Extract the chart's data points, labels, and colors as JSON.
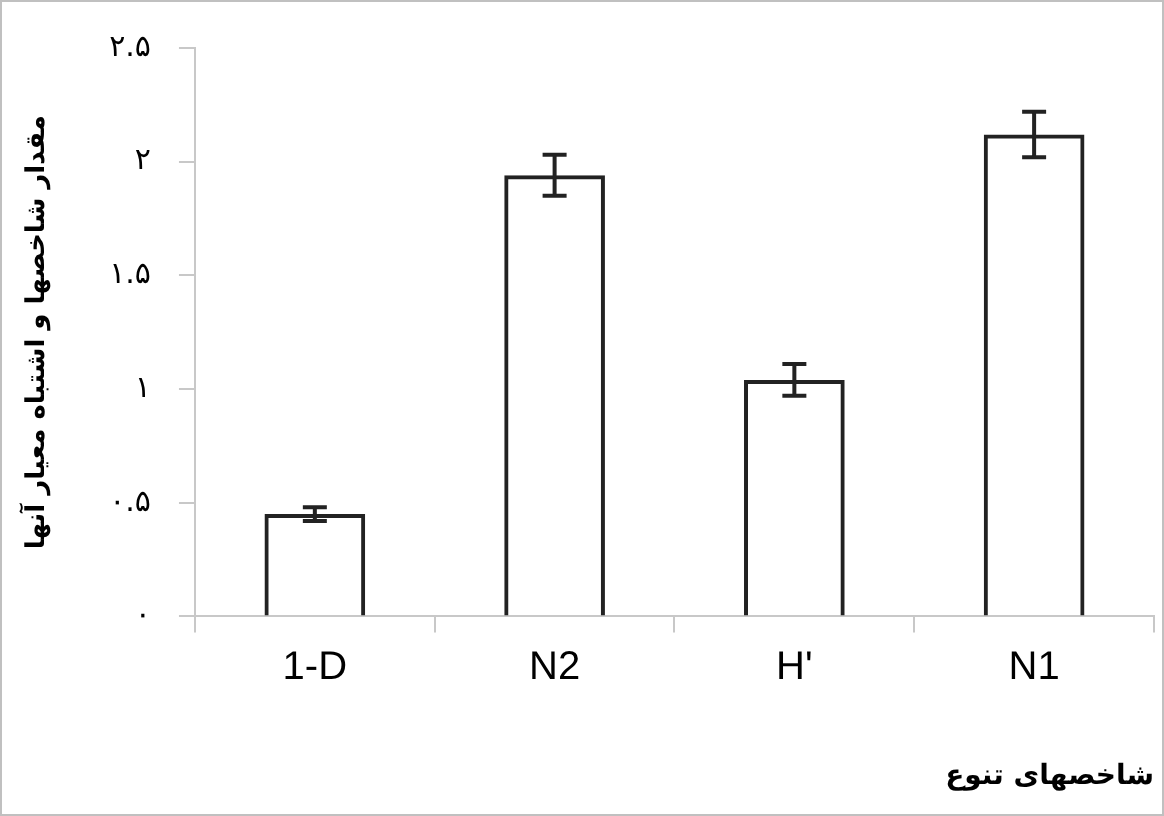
{
  "chart_data": {
    "type": "bar",
    "xlabel": "شاخصهای تنوع",
    "ylabel": "مقدار شاخصها و اشتباه معیار آنها",
    "categories": [
      "1-D",
      "N2",
      "H'",
      "N1"
    ],
    "values": [
      0.45,
      1.94,
      1.04,
      2.12
    ],
    "errors": [
      0.03,
      0.09,
      0.07,
      0.1
    ],
    "color": "#222222",
    "ylim": [
      0,
      2.5
    ],
    "yticks": [
      {
        "value": 0,
        "label": "۰"
      },
      {
        "value": 0.5,
        "label": "۰.۵"
      },
      {
        "value": 1,
        "label": "۱"
      },
      {
        "value": 1.5,
        "label": "۱.۵"
      },
      {
        "value": 2,
        "label": "۲"
      },
      {
        "value": 2.5,
        "label": "۲.۵"
      }
    ],
    "grid": false,
    "legend": false
  }
}
